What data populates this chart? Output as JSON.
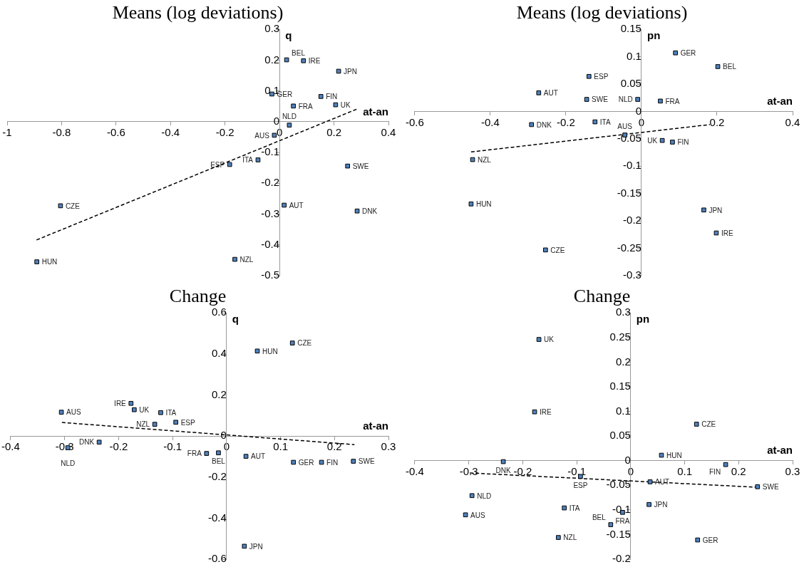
{
  "chart_data": [
    {
      "type": "scatter",
      "title": "Means (log deviations)",
      "xlabel": "at-an",
      "ylabel": "q",
      "xlim": [
        -1,
        0.4
      ],
      "ylim": [
        -0.5,
        0.3
      ],
      "xticks": [
        -1,
        -0.8,
        -0.6,
        -0.4,
        -0.2,
        0,
        0.2,
        0.4
      ],
      "yticks": [
        -0.5,
        -0.4,
        -0.3,
        -0.2,
        -0.1,
        0,
        0.1,
        0.2,
        0.3
      ],
      "grid": false,
      "legend": false,
      "marker": "square",
      "series": [
        {
          "type": "scatter",
          "color": "#4f81bd",
          "x": [
            0.026,
            0.088,
            0.217,
            -0.028,
            0.152,
            0.206,
            0.051,
            0.036,
            -0.019,
            -0.079,
            -0.183,
            0.25,
            -0.804,
            0.017,
            0.285,
            -0.164,
            -0.891
          ],
          "values": [
            0.201,
            0.198,
            0.164,
            0.09,
            0.082,
            0.055,
            0.051,
            -0.011,
            -0.044,
            -0.124,
            -0.139,
            -0.144,
            -0.273,
            -0.271,
            -0.29,
            -0.447,
            -0.455
          ],
          "value_labels": [
            "BEL",
            "IRE",
            "JPN",
            "GER",
            "FIN",
            "UK",
            "FRA",
            "NLD",
            "AUS",
            "ITA",
            "ESP",
            "SWE",
            "CZE",
            "AUT",
            "DNK",
            "NZL",
            "HUN"
          ]
        },
        {
          "type": "line",
          "color": "#000000",
          "x": [
            -0.892,
            0.287
          ],
          "values": [
            -0.384,
            0.042
          ],
          "marker": "none",
          "line_style": "dashed"
        }
      ]
    },
    {
      "type": "scatter",
      "title": "Means (log deviations)",
      "xlabel": "at-an",
      "ylabel": "pn",
      "xlim": [
        -0.6,
        0.4
      ],
      "ylim": [
        -0.3,
        0.15
      ],
      "xticks": [
        -0.6,
        -0.4,
        -0.2,
        0,
        0.2,
        0.4
      ],
      "yticks": [
        -0.3,
        -0.25,
        -0.2,
        -0.15,
        -0.1,
        -0.05,
        0,
        0.05,
        0.1,
        0.15
      ],
      "grid": false,
      "legend": false,
      "marker": "square",
      "series": [
        {
          "type": "scatter",
          "color": "#4f81bd",
          "x": [
            0.09,
            0.202,
            -0.139,
            -0.272,
            -0.145,
            -0.01,
            0.05,
            -0.291,
            -0.123,
            -0.044,
            0.055,
            0.082,
            -0.447,
            -0.451,
            0.165,
            0.198,
            -0.254
          ],
          "values": [
            0.107,
            0.082,
            0.064,
            0.034,
            0.022,
            0.022,
            0.019,
            -0.024,
            -0.019,
            -0.043,
            -0.053,
            -0.056,
            -0.088,
            -0.169,
            -0.18,
            -0.222,
            -0.253
          ],
          "value_labels": [
            "GER",
            "BEL",
            "ESP",
            "AUT",
            "SWE",
            "NLD",
            "FRA",
            "DNK",
            "ITA",
            "AUS",
            "UK",
            "FIN",
            "NZL",
            "HUN",
            "JPN",
            "IRE",
            "CZE"
          ]
        },
        {
          "type": "line",
          "color": "#000000",
          "x": [
            -0.451,
            0.181
          ],
          "values": [
            -0.074,
            -0.024
          ],
          "marker": "none",
          "line_style": "dashed"
        }
      ]
    },
    {
      "type": "scatter",
      "title": "Change",
      "xlabel": "at-an",
      "ylabel": "q",
      "xlim": [
        -0.4,
        0.3
      ],
      "ylim": [
        -0.6,
        0.6
      ],
      "xticks": [
        -0.4,
        -0.3,
        -0.2,
        -0.1,
        0,
        0.1,
        0.2,
        0.3
      ],
      "yticks": [
        -0.6,
        -0.4,
        -0.2,
        0,
        0.2,
        0.4,
        0.6
      ],
      "grid": false,
      "legend": false,
      "marker": "square",
      "series": [
        {
          "type": "scatter",
          "color": "#4f81bd",
          "x": [
            0.122,
            0.057,
            -0.306,
            -0.177,
            -0.171,
            -0.122,
            -0.133,
            -0.094,
            -0.236,
            -0.294,
            -0.037,
            -0.015,
            0.036,
            0.124,
            0.176,
            0.235,
            0.033
          ],
          "values": [
            0.453,
            0.414,
            0.116,
            0.159,
            0.128,
            0.114,
            0.057,
            0.067,
            -0.03,
            -0.057,
            -0.085,
            -0.082,
            -0.099,
            -0.128,
            -0.128,
            -0.123,
            -0.537
          ],
          "value_labels": [
            "CZE",
            "HUN",
            "AUS",
            "IRE",
            "UK",
            "ITA",
            "NZL",
            "ESP",
            "DNK",
            "NLD",
            "FRA",
            "BEL",
            "AUT",
            "GER",
            "FIN",
            "SWE",
            "JPN"
          ]
        },
        {
          "type": "line",
          "color": "#000000",
          "x": [
            -0.305,
            0.237
          ],
          "values": [
            0.066,
            -0.042
          ],
          "marker": "none",
          "line_style": "dashed"
        }
      ]
    },
    {
      "type": "scatter",
      "title": "Change",
      "xlabel": "at-an",
      "ylabel": "pn",
      "xlim": [
        -0.4,
        0.3
      ],
      "ylim": [
        -0.2,
        0.3
      ],
      "xticks": [
        -0.4,
        -0.3,
        -0.2,
        -0.1,
        0,
        0.1,
        0.2,
        0.3
      ],
      "yticks": [
        -0.2,
        -0.15,
        -0.1,
        -0.05,
        0,
        0.05,
        0.1,
        0.15,
        0.2,
        0.25,
        0.3
      ],
      "grid": false,
      "legend": false,
      "marker": "square",
      "series": [
        {
          "type": "scatter",
          "color": "#4f81bd",
          "x": [
            -0.17,
            -0.178,
            0.122,
            0.057,
            -0.236,
            0.176,
            -0.093,
            0.036,
            0.235,
            -0.294,
            0.034,
            -0.123,
            -0.306,
            -0.015,
            -0.037,
            -0.134,
            0.124
          ],
          "values": [
            0.246,
            0.099,
            0.074,
            0.011,
            -0.002,
            -0.008,
            -0.032,
            -0.043,
            -0.053,
            -0.071,
            -0.089,
            -0.096,
            -0.11,
            -0.105,
            -0.13,
            -0.156,
            -0.161
          ],
          "value_labels": [
            "UK",
            "IRE",
            "CZE",
            "HUN",
            "DNK",
            "FIN",
            "ESP",
            "AUT",
            "SWE",
            "NLD",
            "JPN",
            "ITA",
            "AUS",
            "FRA",
            "BEL",
            "NZL",
            "GER"
          ]
        },
        {
          "type": "line",
          "color": "#000000",
          "x": [
            -0.298,
            0.235
          ],
          "values": [
            -0.025,
            -0.054
          ],
          "marker": "none",
          "line_style": "dashed"
        }
      ]
    }
  ]
}
